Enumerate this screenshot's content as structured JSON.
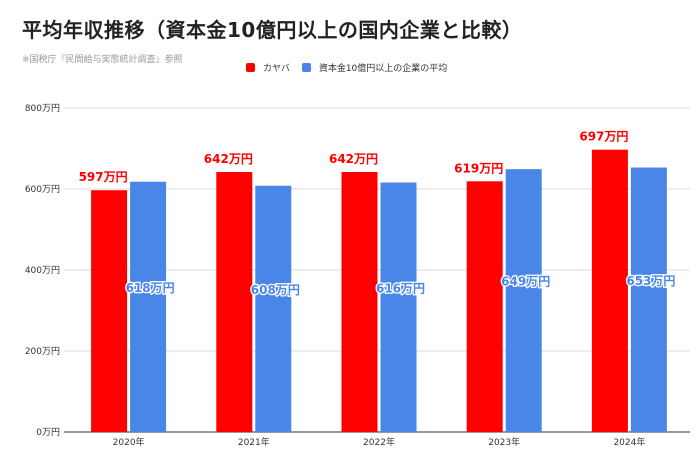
{
  "header": {
    "title": "平均年収推移（資本金10億円以上の国内企業と比較）",
    "source": "※国税庁『民間給与実態統計調査』参照"
  },
  "colors": {
    "kayaba": "#ff0000",
    "average": "#4a86e8",
    "grid": "#dddddd",
    "axis": "#333333"
  },
  "chart_data": {
    "type": "bar",
    "categories": [
      "2020年",
      "2021年",
      "2022年",
      "2023年",
      "2024年"
    ],
    "series": [
      {
        "name": "カヤバ",
        "values": [
          597,
          642,
          642,
          619,
          697
        ],
        "color": "#ff0000",
        "labels": [
          "597万円",
          "642万円",
          "642万円",
          "619万円",
          "697万円"
        ]
      },
      {
        "name": "資本金10億円以上の企業の平均",
        "values": [
          618,
          608,
          616,
          649,
          653
        ],
        "color": "#4a86e8",
        "labels": [
          "618万円",
          "608万円",
          "616万円",
          "649万円",
          "653万円"
        ]
      }
    ],
    "ylim": [
      0,
      800
    ],
    "yticks": [
      0,
      200,
      400,
      600,
      800
    ],
    "ytick_labels": [
      "0万円",
      "200万円",
      "400万円",
      "600万円",
      "800万円"
    ],
    "grid": true,
    "legend_position": "top"
  }
}
